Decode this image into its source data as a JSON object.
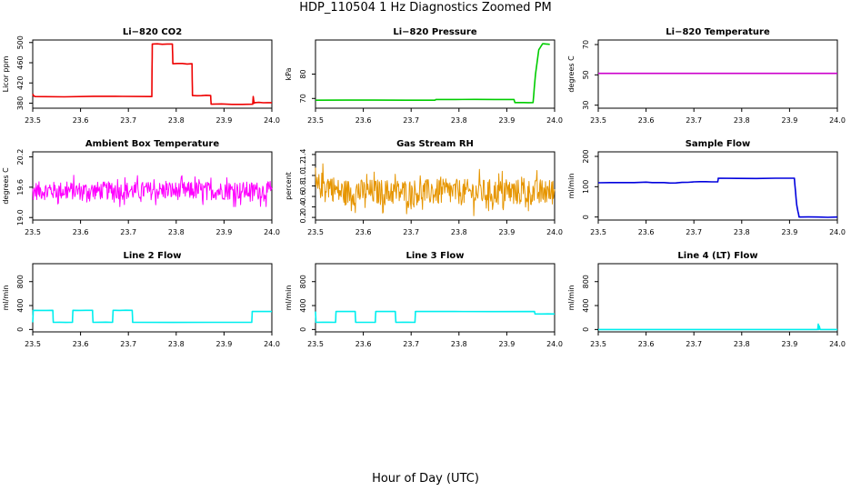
{
  "figure": {
    "title": "HDP_110504  1 Hz Diagnostics Zoomed PM",
    "xlabel": "Hour of Day (UTC)"
  },
  "chart_data": [
    {
      "id": "co2",
      "type": "line",
      "title": "Li−820 CO2",
      "ylabel": "Licor ppm",
      "color": "#ee0000",
      "xlim": [
        23.5,
        24.0
      ],
      "ylim": [
        370,
        505
      ],
      "xticks": [
        23.5,
        23.6,
        23.7,
        23.8,
        23.9,
        24.0
      ],
      "xtick_labels": [
        "23.5",
        "23.6",
        "23.7",
        "23.8",
        "23.9",
        "24.0"
      ],
      "yticks": [
        380,
        420,
        460,
        500
      ],
      "ytick_labels": [
        "380",
        "420",
        "460",
        "500"
      ],
      "noise": 1.5,
      "density": 4,
      "series": [
        {
          "name": "CO2",
          "x": [
            23.5,
            23.502,
            23.505,
            23.749,
            23.75,
            23.792,
            23.793,
            23.833,
            23.834,
            23.872,
            23.873,
            23.96,
            23.961,
            23.963,
            23.964,
            24.0
          ],
          "y": [
            398,
            394,
            393,
            393,
            497,
            497,
            458,
            458,
            395,
            395,
            378,
            378,
            393,
            380,
            381,
            381
          ]
        }
      ]
    },
    {
      "id": "pressure",
      "type": "line",
      "title": "Li−820 Pressure",
      "ylabel": "kPa",
      "color": "#00cc00",
      "xlim": [
        23.5,
        24.0
      ],
      "ylim": [
        66,
        94
      ],
      "xticks": [
        23.5,
        23.6,
        23.7,
        23.8,
        23.9,
        24.0
      ],
      "xtick_labels": [
        "23.5",
        "23.6",
        "23.7",
        "23.8",
        "23.9",
        "24.0"
      ],
      "yticks": [
        70,
        80
      ],
      "ytick_labels": [
        "70",
        "80"
      ],
      "noise": 0.05,
      "density": 4,
      "series": [
        {
          "name": "Pressure",
          "x": [
            23.5,
            23.75,
            23.752,
            23.915,
            23.917,
            23.955,
            23.96,
            23.967,
            23.975,
            23.99
          ],
          "y": [
            69.3,
            69.3,
            69.6,
            69.6,
            68.3,
            68.3,
            80,
            90,
            92.5,
            92.2
          ]
        }
      ]
    },
    {
      "id": "temperature",
      "type": "line",
      "title": "Li−820 Temperature",
      "ylabel": "degrees C",
      "color": "#cc00cc",
      "xlim": [
        23.5,
        24.0
      ],
      "ylim": [
        28,
        73
      ],
      "xticks": [
        23.5,
        23.6,
        23.7,
        23.8,
        23.9,
        24.0
      ],
      "xtick_labels": [
        "23.5",
        "23.6",
        "23.7",
        "23.8",
        "23.9",
        "24.0"
      ],
      "yticks": [
        30,
        50,
        70
      ],
      "ytick_labels": [
        "30",
        "50",
        "70"
      ],
      "noise": 0,
      "density": 1,
      "series": [
        {
          "name": "Temperature",
          "x": [
            23.5,
            24.0
          ],
          "y": [
            51,
            51
          ]
        }
      ]
    },
    {
      "id": "ambient",
      "type": "line",
      "title": "Ambient Box Temperature",
      "ylabel": "degrees C",
      "color": "#ff00ff",
      "xlim": [
        23.5,
        24.0
      ],
      "ylim": [
        18.95,
        20.3
      ],
      "xticks": [
        23.5,
        23.6,
        23.7,
        23.8,
        23.9,
        24.0
      ],
      "xtick_labels": [
        "23.5",
        "23.6",
        "23.7",
        "23.8",
        "23.9",
        "24.0"
      ],
      "yticks": [
        19.0,
        19.6,
        20.2
      ],
      "ytick_labels": [
        "19.0",
        "19.6",
        "20.2"
      ],
      "noise": 0.18,
      "density": 420,
      "series": [
        {
          "name": "Ambient",
          "x": [
            23.5,
            24.0
          ],
          "y": [
            19.53,
            19.53
          ]
        }
      ]
    },
    {
      "id": "rh",
      "type": "line",
      "title": "Gas Stream RH",
      "ylabel": "percent",
      "color": "#e69500",
      "xlim": [
        23.5,
        24.0
      ],
      "ylim": [
        0.15,
        1.45
      ],
      "xticks": [
        23.5,
        23.6,
        23.7,
        23.8,
        23.9,
        24.0
      ],
      "xtick_labels": [
        "23.5",
        "23.6",
        "23.7",
        "23.8",
        "23.9",
        "24.0"
      ],
      "yticks": [
        0.2,
        0.4,
        0.6,
        0.8,
        1.0,
        1.2,
        1.4
      ],
      "ytick_labels": [
        "0.2",
        "0.4",
        "0.6",
        "0.8",
        "1.0",
        "1.2",
        "1.4"
      ],
      "noise": 0.25,
      "density": 420,
      "series": [
        {
          "name": "RH",
          "x": [
            23.5,
            23.52,
            23.55,
            24.0
          ],
          "y": [
            0.75,
            0.85,
            0.68,
            0.68
          ]
        }
      ]
    },
    {
      "id": "sample-flow",
      "type": "line",
      "title": "Sample Flow",
      "ylabel": "ml/min",
      "color": "#0000dd",
      "xlim": [
        23.5,
        24.0
      ],
      "ylim": [
        -10,
        215
      ],
      "xticks": [
        23.5,
        23.6,
        23.7,
        23.8,
        23.9,
        24.0
      ],
      "xtick_labels": [
        "23.5",
        "23.6",
        "23.7",
        "23.8",
        "23.9",
        "24.0"
      ],
      "yticks": [
        0,
        100,
        200
      ],
      "ytick_labels": [
        "0",
        "100",
        "200"
      ],
      "noise": 2,
      "density": 4,
      "series": [
        {
          "name": "Sample",
          "x": [
            23.5,
            23.6,
            23.65,
            23.7,
            23.75,
            23.751,
            23.91,
            23.915,
            23.92,
            24.0
          ],
          "y": [
            113,
            115,
            112,
            116,
            116,
            128,
            128,
            40,
            0,
            0
          ]
        }
      ]
    },
    {
      "id": "line2-flow",
      "type": "line",
      "title": "Line 2 Flow",
      "ylabel": "ml/min",
      "color": "#00eeee",
      "xlim": [
        23.5,
        24.0
      ],
      "ylim": [
        -40,
        1100
      ],
      "xticks": [
        23.5,
        23.6,
        23.7,
        23.8,
        23.9,
        24.0
      ],
      "xtick_labels": [
        "23.5",
        "23.6",
        "23.7",
        "23.8",
        "23.9",
        "24.0"
      ],
      "yticks": [
        0,
        400,
        800
      ],
      "ytick_labels": [
        "0",
        "400",
        "800"
      ],
      "noise": 4,
      "density": 3,
      "series": [
        {
          "name": "Line2",
          "x": [
            23.5,
            23.501,
            23.542,
            23.543,
            23.583,
            23.584,
            23.625,
            23.626,
            23.667,
            23.668,
            23.708,
            23.709,
            23.958,
            23.959,
            24.0
          ],
          "y": [
            120,
            320,
            320,
            120,
            120,
            320,
            320,
            120,
            120,
            320,
            320,
            120,
            120,
            300,
            300
          ]
        }
      ]
    },
    {
      "id": "line3-flow",
      "type": "line",
      "title": "Line 3 Flow",
      "ylabel": "ml/min",
      "color": "#00eeee",
      "xlim": [
        23.5,
        24.0
      ],
      "ylim": [
        -40,
        1100
      ],
      "xticks": [
        23.5,
        23.6,
        23.7,
        23.8,
        23.9,
        24.0
      ],
      "xtick_labels": [
        "23.5",
        "23.6",
        "23.7",
        "23.8",
        "23.9",
        "24.0"
      ],
      "yticks": [
        0,
        400,
        800
      ],
      "ytick_labels": [
        "0",
        "400",
        "800"
      ],
      "noise": 4,
      "density": 3,
      "series": [
        {
          "name": "Line3",
          "x": [
            23.5,
            23.501,
            23.542,
            23.543,
            23.583,
            23.584,
            23.625,
            23.626,
            23.667,
            23.668,
            23.708,
            23.709,
            23.958,
            23.959,
            24.0
          ],
          "y": [
            300,
            120,
            120,
            300,
            300,
            120,
            120,
            300,
            300,
            120,
            120,
            300,
            300,
            260,
            260
          ]
        }
      ]
    },
    {
      "id": "line4-flow",
      "type": "line",
      "title": "Line 4 (LT) Flow",
      "ylabel": "ml/min",
      "color": "#00eeee",
      "xlim": [
        23.5,
        24.0
      ],
      "ylim": [
        -40,
        1100
      ],
      "xticks": [
        23.5,
        23.6,
        23.7,
        23.8,
        23.9,
        24.0
      ],
      "xtick_labels": [
        "23.5",
        "23.6",
        "23.7",
        "23.8",
        "23.9",
        "24.0"
      ],
      "yticks": [
        0,
        400,
        800
      ],
      "ytick_labels": [
        "0",
        "400",
        "800"
      ],
      "noise": 0,
      "density": 1,
      "series": [
        {
          "name": "Line4",
          "x": [
            23.5,
            23.959,
            23.96,
            23.961,
            23.962,
            23.964,
            24.0
          ],
          "y": [
            0,
            0,
            90,
            0,
            60,
            0,
            0
          ]
        }
      ]
    }
  ]
}
